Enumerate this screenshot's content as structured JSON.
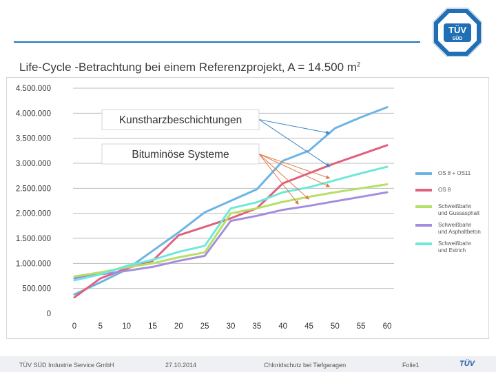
{
  "slide": {
    "title": "Life-Cycle -Betrachtung bei einem Referenzprojekt, A = 14.500 m",
    "title_sup": "2",
    "logo_line1": "TÜV",
    "logo_line2": "SÜD",
    "footer_company": "TÜV SÜD Industrie Service GmbH",
    "footer_date": "27.10.2014",
    "footer_topic": "Chloridschutz bei Tiefgaragen",
    "footer_page": "Folie1",
    "footer_logo": "TÜV"
  },
  "chart_data": {
    "type": "line",
    "title": "",
    "xlabel": "",
    "ylabel": "",
    "x": [
      0,
      5,
      10,
      15,
      20,
      25,
      30,
      35,
      40,
      45,
      50,
      55,
      60
    ],
    "xlim": [
      0,
      60
    ],
    "ylim": [
      0,
      4500000
    ],
    "y_ticks": [
      "0",
      "500.000",
      "1.000.000",
      "1.500.000",
      "2.000.000",
      "2.500.000",
      "3.000.000",
      "3.500.000",
      "4.000.000",
      "4.500.000"
    ],
    "x_ticks": [
      "0",
      "5",
      "10",
      "15",
      "20",
      "25",
      "30",
      "35",
      "40",
      "45",
      "50",
      "55",
      "60"
    ],
    "grid": true,
    "legend_position": "right",
    "series": [
      {
        "name": "OS 8 + OS11",
        "color": "#6bb5e6",
        "points": [
          [
            0,
            380000
          ],
          [
            5,
            620000
          ],
          [
            10,
            880000
          ],
          [
            15,
            1250000
          ],
          [
            20,
            1620000
          ],
          [
            25,
            2020000
          ],
          [
            30,
            2250000
          ],
          [
            35,
            2480000
          ],
          [
            40,
            3050000
          ],
          [
            45,
            3250000
          ],
          [
            50,
            3700000
          ],
          [
            55,
            3920000
          ],
          [
            60,
            4120000
          ]
        ]
      },
      {
        "name": "OS 8",
        "color": "#e0607e",
        "points": [
          [
            0,
            320000
          ],
          [
            5,
            700000
          ],
          [
            10,
            900000
          ],
          [
            15,
            1050000
          ],
          [
            20,
            1560000
          ],
          [
            25,
            1730000
          ],
          [
            30,
            1900000
          ],
          [
            35,
            2100000
          ],
          [
            40,
            2600000
          ],
          [
            45,
            2800000
          ],
          [
            50,
            3000000
          ],
          [
            55,
            3180000
          ],
          [
            60,
            3360000
          ]
        ]
      },
      {
        "name": "Schweißbahn\nund Gussasphalt",
        "color": "#b5e066",
        "points": [
          [
            0,
            740000
          ],
          [
            5,
            820000
          ],
          [
            10,
            920000
          ],
          [
            15,
            1000000
          ],
          [
            20,
            1120000
          ],
          [
            25,
            1220000
          ],
          [
            30,
            2000000
          ],
          [
            35,
            2100000
          ],
          [
            40,
            2230000
          ],
          [
            45,
            2330000
          ],
          [
            50,
            2420000
          ],
          [
            55,
            2500000
          ],
          [
            60,
            2580000
          ]
        ]
      },
      {
        "name": "Schweißbahn\nund Asphaltbeton",
        "color": "#a48ddc",
        "points": [
          [
            0,
            700000
          ],
          [
            5,
            780000
          ],
          [
            10,
            850000
          ],
          [
            15,
            930000
          ],
          [
            20,
            1050000
          ],
          [
            25,
            1150000
          ],
          [
            30,
            1850000
          ],
          [
            35,
            1950000
          ],
          [
            40,
            2070000
          ],
          [
            45,
            2150000
          ],
          [
            50,
            2240000
          ],
          [
            55,
            2330000
          ],
          [
            60,
            2420000
          ]
        ]
      },
      {
        "name": "Schweißbahn\nund Estrich",
        "color": "#6ee8da",
        "points": [
          [
            0,
            660000
          ],
          [
            5,
            780000
          ],
          [
            10,
            950000
          ],
          [
            15,
            1070000
          ],
          [
            20,
            1230000
          ],
          [
            25,
            1350000
          ],
          [
            30,
            2100000
          ],
          [
            35,
            2220000
          ],
          [
            40,
            2420000
          ],
          [
            45,
            2520000
          ],
          [
            50,
            2660000
          ],
          [
            55,
            2800000
          ],
          [
            60,
            2930000
          ]
        ]
      }
    ],
    "annotations": [
      {
        "text": "Kunstharzbeschichtungen",
        "arrow_color": "#3a86c8",
        "targets": [
          [
            49,
            3600000
          ],
          [
            49,
            2930000
          ]
        ]
      },
      {
        "text": "Bituminöse Systeme",
        "arrow_color": "#e07a4a",
        "targets": [
          [
            49,
            2700000
          ],
          [
            49,
            2530000
          ],
          [
            45,
            2280000
          ],
          [
            43,
            2180000
          ]
        ]
      }
    ]
  }
}
